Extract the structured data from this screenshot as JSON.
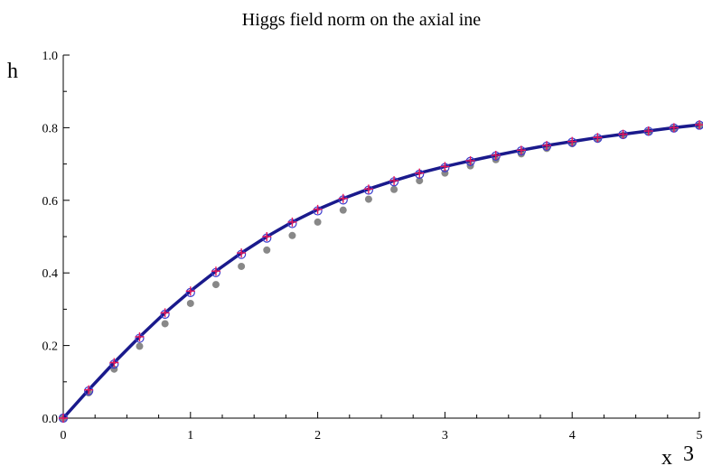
{
  "chart_data": {
    "type": "scatter",
    "title": "Higgs field norm on the axial ine",
    "xlabel": "x",
    "xlabel_extra": "3",
    "ylabel": "h",
    "xlim": [
      0,
      5
    ],
    "ylim": [
      0,
      1
    ],
    "x_ticks": [
      "0",
      "1",
      "2",
      "3",
      "4",
      "5"
    ],
    "y_ticks": [
      "0.0",
      "0.2",
      "0.4",
      "0.6",
      "0.8",
      "1.0"
    ],
    "grid": false,
    "legend": "none",
    "colors": {
      "curve": "#1a1a8c",
      "plus_points": "#e8185a",
      "circle_points": "#3b3bcc",
      "gray_points": "#888888",
      "axes": "#000000"
    },
    "series": [
      {
        "style": "line",
        "x": [
          0,
          0.2,
          0.4,
          0.6,
          0.8,
          1.0,
          1.2,
          1.4,
          1.6,
          1.8,
          2.0,
          2.2,
          2.4,
          2.6,
          2.8,
          3.0,
          3.2,
          3.4,
          3.6,
          3.8,
          4.0,
          4.2,
          4.4,
          4.6,
          4.8,
          5.0
        ],
        "values": [
          0,
          0.078,
          0.153,
          0.224,
          0.29,
          0.35,
          0.405,
          0.455,
          0.5,
          0.54,
          0.575,
          0.605,
          0.631,
          0.654,
          0.675,
          0.693,
          0.709,
          0.724,
          0.738,
          0.751,
          0.762,
          0.773,
          0.782,
          0.791,
          0.8,
          0.808
        ]
      },
      {
        "style": "plus",
        "x": [
          0,
          0.2,
          0.4,
          0.6,
          0.8,
          1.0,
          1.2,
          1.4,
          1.6,
          1.8,
          2.0,
          2.2,
          2.4,
          2.6,
          2.8,
          3.0,
          3.2,
          3.4,
          3.6,
          3.8,
          4.0,
          4.2,
          4.4,
          4.6,
          4.8,
          5.0
        ],
        "values": [
          0,
          0.078,
          0.153,
          0.224,
          0.29,
          0.35,
          0.405,
          0.455,
          0.5,
          0.54,
          0.575,
          0.605,
          0.631,
          0.654,
          0.675,
          0.693,
          0.709,
          0.724,
          0.738,
          0.751,
          0.762,
          0.773,
          0.782,
          0.791,
          0.8,
          0.808
        ]
      },
      {
        "style": "circle",
        "x": [
          0,
          0.2,
          0.4,
          0.6,
          0.8,
          1.0,
          1.2,
          1.4,
          1.6,
          1.8,
          2.0,
          2.2,
          2.4,
          2.6,
          2.8,
          3.0,
          3.2,
          3.4,
          3.6,
          3.8,
          4.0,
          4.2,
          4.4,
          4.6,
          4.8,
          5.0
        ],
        "values": [
          0,
          0.075,
          0.149,
          0.22,
          0.286,
          0.346,
          0.401,
          0.451,
          0.496,
          0.536,
          0.571,
          0.601,
          0.628,
          0.651,
          0.672,
          0.69,
          0.707,
          0.722,
          0.736,
          0.749,
          0.76,
          0.771,
          0.781,
          0.79,
          0.799,
          0.807
        ]
      },
      {
        "style": "gray-dot",
        "x": [
          0,
          0.2,
          0.4,
          0.6,
          0.8,
          1.0,
          1.2,
          1.4,
          1.6,
          1.8,
          2.0,
          2.2,
          2.4,
          2.6,
          2.8,
          3.0,
          3.2,
          3.4,
          3.6,
          3.8,
          4.0,
          4.2,
          4.4,
          4.6,
          4.8,
          5.0
        ],
        "values": [
          0,
          0.07,
          0.135,
          0.198,
          0.26,
          0.316,
          0.368,
          0.418,
          0.463,
          0.503,
          0.54,
          0.573,
          0.603,
          0.63,
          0.654,
          0.675,
          0.695,
          0.712,
          0.728,
          0.743,
          0.756,
          0.768,
          0.779,
          0.789,
          0.798,
          0.806
        ]
      }
    ]
  }
}
